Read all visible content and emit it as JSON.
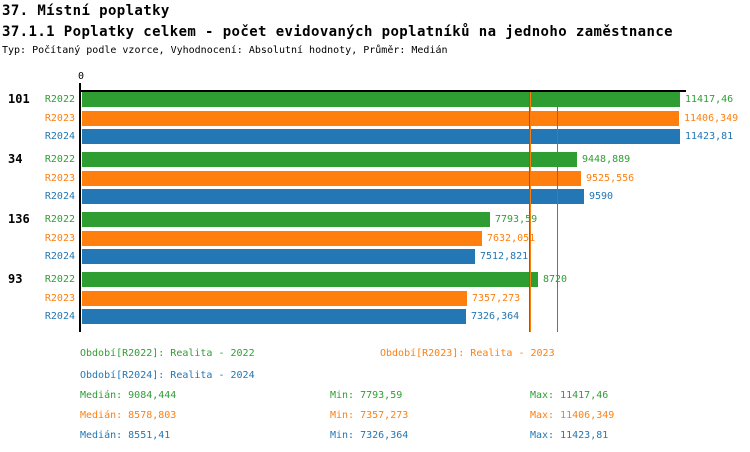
{
  "header": {
    "title": "37. Místní poplatky",
    "subtitle": "37.1.1 Poplatky celkem - počet evidovaných poplatníků na jednoho zaměstnance",
    "meta": "Typ: Počítaný podle vzorce, Vyhodnocení: Absolutní hodnoty, Průměr: Medián"
  },
  "colors": {
    "r2022": "#2E9E33",
    "r2023": "#FF7F0E",
    "r2024": "#2277B4",
    "axis": "#000000"
  },
  "chart_data": {
    "type": "bar",
    "orientation": "horizontal",
    "title": "37.1.1 Poplatky celkem - počet evidovaných poplatníků na jednoho zaměstnance",
    "categories": [
      "101",
      "34",
      "136",
      "93"
    ],
    "series": [
      {
        "name": "R2022",
        "color_key": "r2022",
        "values": [
          11417.46,
          9448.889,
          7793.59,
          8720
        ],
        "labels": [
          "11417,46",
          "9448,889",
          "7793,59",
          "8720"
        ],
        "median": 9084.444
      },
      {
        "name": "R2023",
        "color_key": "r2023",
        "values": [
          11406.349,
          9525.556,
          7632.051,
          7357.273
        ],
        "labels": [
          "11406,349",
          "9525,556",
          "7632,051",
          "7357,273"
        ],
        "median": 8578.803
      },
      {
        "name": "R2024",
        "color_key": "r2024",
        "values": [
          11423.81,
          9590,
          7512.821,
          7326.364
        ],
        "labels": [
          "11423,81",
          "9590",
          "7512,821",
          "7326,364"
        ],
        "median": 8551.41
      }
    ],
    "x_tick_labels": [
      "0"
    ],
    "xlim": [
      0,
      11550
    ],
    "grid": false,
    "legend_position": "bottom",
    "median_lines": true
  },
  "legend": [
    {
      "label": "Období[R2022]: Realita - 2022",
      "color_key": "r2022"
    },
    {
      "label": "Období[R2023]: Realita - 2023",
      "color_key": "r2023"
    },
    {
      "label": "Období[R2024]: Realita - 2024",
      "color_key": "r2024"
    }
  ],
  "stats": [
    {
      "median": "Medián: 9084,444",
      "min": "Min: 7793,59",
      "max": "Max: 11417,46",
      "color_key": "r2022"
    },
    {
      "median": "Medián: 8578,803",
      "min": "Min: 7357,273",
      "max": "Max: 11406,349",
      "color_key": "r2023"
    },
    {
      "median": "Medián: 8551,41",
      "min": "Min: 7326,364",
      "max": "Max: 11423,81",
      "color_key": "r2024"
    }
  ]
}
